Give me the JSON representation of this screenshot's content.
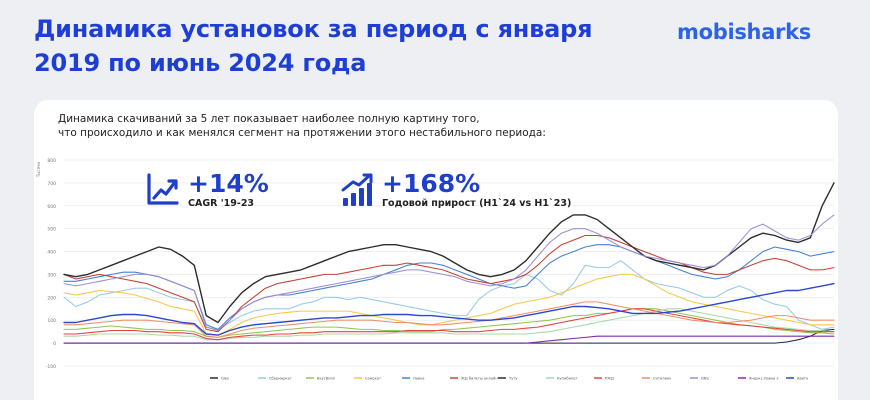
{
  "header": {
    "title_line1": "Динамика установок за период с января",
    "title_line2": "2019 по июнь 2024 года",
    "logo": "mobisharks"
  },
  "intro": {
    "line1": "Динамика скачиваний за 5 лет показывает наиболее полную картину того,",
    "line2": "что происходило и как менялся сегмент на протяжении этого нестабильного периода:"
  },
  "kpis": [
    {
      "value": "+14%",
      "label": "CAGR '19-23",
      "icon": "line-chart-up-icon"
    },
    {
      "value": "+168%",
      "label": "Годовой прирост (H1`24 vs H1`23)",
      "icon": "bar-chart-up-icon"
    }
  ],
  "chart_data": {
    "type": "line",
    "ylabel": "Тысячи",
    "ylim": [
      -100,
      800
    ],
    "yticks": [
      -100,
      0,
      100,
      200,
      300,
      400,
      500,
      600,
      700,
      800
    ],
    "grid": true,
    "legend_position": "bottom",
    "x_count": 66,
    "series": [
      {
        "name": "Glex",
        "color": "#1a1a3a",
        "x_break": 3,
        "values": [
          0,
          0,
          0,
          0,
          0,
          0,
          0,
          0,
          0,
          0,
          0,
          0,
          0,
          0,
          0,
          0,
          0,
          0,
          0,
          0,
          0,
          0,
          0,
          0,
          0,
          0,
          0,
          0,
          0,
          0,
          0,
          0,
          0,
          0,
          0,
          0,
          0,
          0,
          0,
          0,
          0,
          0,
          0,
          0,
          0,
          0,
          0,
          0,
          0,
          0,
          0,
          0,
          0,
          0,
          0,
          0,
          0,
          0,
          0,
          0,
          0,
          5,
          15,
          30,
          55,
          60
        ]
      },
      {
        "name": "Сбермаркет",
        "color": "#90c8e8",
        "values": [
          200,
          160,
          180,
          210,
          220,
          230,
          240,
          240,
          220,
          200,
          190,
          180,
          70,
          60,
          90,
          120,
          140,
          150,
          150,
          150,
          170,
          180,
          200,
          200,
          190,
          200,
          190,
          180,
          170,
          160,
          150,
          140,
          130,
          120,
          120,
          190,
          230,
          250,
          260,
          300,
          280,
          230,
          210,
          260,
          340,
          330,
          330,
          360,
          320,
          280,
          260,
          250,
          240,
          220,
          200,
          200,
          230,
          250,
          230,
          190,
          170,
          160,
          100,
          80,
          60,
          70
        ]
      },
      {
        "name": "ВкусВилл",
        "color": "#8bc34a",
        "values": [
          60,
          60,
          65,
          70,
          75,
          70,
          65,
          60,
          60,
          55,
          55,
          50,
          30,
          25,
          35,
          40,
          45,
          50,
          55,
          60,
          65,
          70,
          70,
          70,
          65,
          60,
          60,
          55,
          55,
          50,
          50,
          50,
          60,
          60,
          65,
          70,
          75,
          80,
          85,
          90,
          95,
          100,
          110,
          120,
          120,
          130,
          130,
          140,
          150,
          150,
          150,
          140,
          130,
          120,
          110,
          100,
          90,
          80,
          75,
          70,
          60,
          55,
          50,
          45,
          45,
          40
        ]
      },
      {
        "name": "Самокат",
        "color": "#f5c542",
        "values": [
          220,
          210,
          220,
          230,
          225,
          220,
          210,
          195,
          180,
          160,
          150,
          140,
          40,
          35,
          60,
          90,
          110,
          120,
          130,
          135,
          140,
          140,
          140,
          140,
          140,
          130,
          120,
          110,
          100,
          90,
          80,
          80,
          90,
          100,
          110,
          120,
          130,
          150,
          170,
          180,
          190,
          200,
          220,
          240,
          260,
          280,
          290,
          300,
          300,
          280,
          250,
          220,
          200,
          180,
          170,
          160,
          150,
          140,
          130,
          120,
          110,
          100,
          90,
          80,
          80,
          80
        ]
      },
      {
        "name": "Лавка",
        "color": "#3a7bd5",
        "values": [
          270,
          270,
          280,
          290,
          300,
          310,
          310,
          300,
          290,
          270,
          250,
          230,
          80,
          60,
          110,
          150,
          180,
          200,
          210,
          210,
          220,
          230,
          240,
          250,
          260,
          270,
          280,
          300,
          320,
          340,
          350,
          350,
          340,
          320,
          300,
          280,
          260,
          250,
          240,
          250,
          300,
          350,
          380,
          400,
          420,
          430,
          430,
          420,
          400,
          380,
          360,
          340,
          320,
          300,
          290,
          280,
          290,
          320,
          360,
          400,
          420,
          410,
          400,
          380,
          390,
          400
        ]
      },
      {
        "name": "ЖД билеты онлайн",
        "color": "#c0392b",
        "values": [
          300,
          280,
          290,
          300,
          290,
          280,
          270,
          260,
          240,
          220,
          200,
          180,
          60,
          50,
          100,
          160,
          200,
          240,
          260,
          270,
          280,
          290,
          300,
          300,
          310,
          320,
          330,
          340,
          340,
          350,
          340,
          330,
          320,
          300,
          280,
          270,
          260,
          270,
          280,
          300,
          340,
          390,
          430,
          450,
          470,
          470,
          460,
          440,
          420,
          400,
          380,
          360,
          350,
          330,
          310,
          300,
          300,
          320,
          340,
          360,
          370,
          360,
          340,
          320,
          320,
          330
        ]
      },
      {
        "name": "Туту",
        "color": "#222222",
        "values": [
          300,
          290,
          300,
          320,
          340,
          360,
          380,
          400,
          420,
          410,
          380,
          340,
          120,
          90,
          160,
          220,
          260,
          290,
          300,
          310,
          320,
          340,
          360,
          380,
          400,
          410,
          420,
          430,
          430,
          420,
          410,
          400,
          380,
          350,
          320,
          300,
          290,
          300,
          320,
          360,
          420,
          480,
          530,
          560,
          560,
          540,
          500,
          460,
          420,
          380,
          360,
          350,
          340,
          330,
          320,
          340,
          380,
          420,
          460,
          480,
          470,
          450,
          440,
          460,
          600,
          700
        ]
      },
      {
        "name": "Купибилет",
        "color": "#a5d6a7",
        "values": [
          30,
          30,
          35,
          40,
          40,
          40,
          40,
          40,
          35,
          35,
          30,
          30,
          15,
          15,
          20,
          25,
          25,
          30,
          30,
          30,
          35,
          35,
          40,
          40,
          40,
          40,
          40,
          40,
          45,
          45,
          45,
          45,
          45,
          40,
          40,
          40,
          40,
          40,
          40,
          40,
          45,
          50,
          60,
          70,
          80,
          90,
          100,
          110,
          120,
          130,
          140,
          150,
          150,
          140,
          130,
          120,
          110,
          100,
          90,
          80,
          70,
          65,
          60,
          55,
          55,
          50
        ]
      },
      {
        "name": "РЖД",
        "color": "#e53935",
        "values": [
          40,
          40,
          45,
          50,
          55,
          55,
          55,
          50,
          50,
          45,
          45,
          40,
          20,
          15,
          25,
          30,
          35,
          35,
          40,
          40,
          45,
          45,
          50,
          50,
          50,
          50,
          50,
          50,
          50,
          55,
          55,
          55,
          55,
          50,
          50,
          50,
          55,
          60,
          60,
          65,
          70,
          80,
          90,
          100,
          110,
          120,
          130,
          140,
          150,
          150,
          140,
          130,
          120,
          110,
          100,
          90,
          85,
          80,
          75,
          70,
          65,
          60,
          55,
          50,
          50,
          50
        ]
      },
      {
        "name": "Ситилинк",
        "color": "#ef8a62",
        "values": [
          80,
          80,
          85,
          90,
          95,
          100,
          100,
          100,
          95,
          90,
          85,
          80,
          30,
          25,
          40,
          55,
          65,
          70,
          75,
          80,
          85,
          90,
          95,
          100,
          100,
          100,
          100,
          95,
          90,
          90,
          85,
          80,
          80,
          85,
          90,
          95,
          100,
          110,
          120,
          130,
          140,
          150,
          160,
          170,
          180,
          180,
          170,
          160,
          150,
          140,
          130,
          120,
          110,
          100,
          95,
          90,
          90,
          95,
          100,
          110,
          120,
          120,
          110,
          100,
          100,
          100
        ]
      },
      {
        "name": "DNS",
        "color": "#9c89d4",
        "values": [
          260,
          250,
          260,
          270,
          280,
          290,
          300,
          300,
          290,
          270,
          250,
          230,
          70,
          55,
          100,
          150,
          180,
          200,
          210,
          220,
          230,
          240,
          250,
          260,
          270,
          280,
          290,
          300,
          310,
          320,
          320,
          310,
          300,
          290,
          270,
          260,
          250,
          260,
          280,
          320,
          380,
          440,
          480,
          500,
          500,
          480,
          450,
          420,
          400,
          380,
          370,
          360,
          350,
          340,
          330,
          340,
          380,
          440,
          500,
          520,
          490,
          460,
          450,
          470,
          520,
          560
        ]
      },
      {
        "name": "Яндекс.Лавка 2",
        "color": "#7b1fa2",
        "values": [
          0,
          0,
          0,
          0,
          0,
          0,
          0,
          0,
          0,
          0,
          0,
          0,
          0,
          0,
          0,
          0,
          0,
          0,
          0,
          0,
          0,
          0,
          0,
          0,
          0,
          0,
          0,
          0,
          0,
          0,
          0,
          0,
          0,
          0,
          0,
          0,
          0,
          0,
          0,
          0,
          5,
          10,
          15,
          20,
          25,
          30,
          30,
          30,
          30,
          30,
          30,
          30,
          30,
          30,
          30,
          30,
          30,
          30,
          30,
          30,
          30,
          30,
          30,
          30,
          30,
          30
        ]
      },
      {
        "name": "Авито",
        "color": "#1f3fc9",
        "values": [
          90,
          90,
          100,
          110,
          120,
          125,
          125,
          120,
          110,
          100,
          90,
          85,
          40,
          35,
          55,
          70,
          80,
          85,
          90,
          95,
          100,
          105,
          110,
          110,
          115,
          120,
          120,
          125,
          125,
          125,
          120,
          120,
          115,
          110,
          105,
          100,
          100,
          105,
          110,
          120,
          130,
          140,
          150,
          160,
          160,
          155,
          150,
          140,
          130,
          130,
          130,
          135,
          140,
          150,
          160,
          170,
          180,
          190,
          200,
          210,
          220,
          230,
          230,
          240,
          250,
          260
        ]
      }
    ]
  }
}
